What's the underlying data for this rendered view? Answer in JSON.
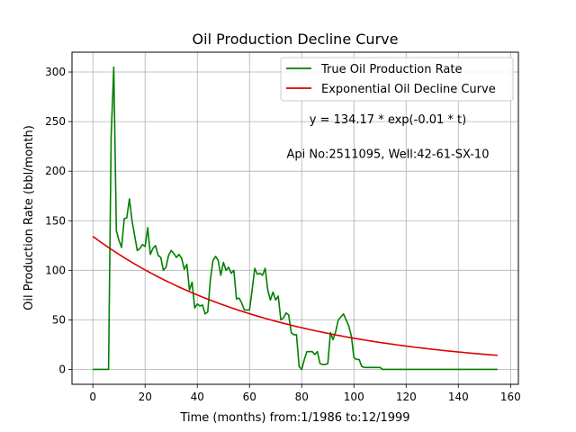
{
  "chart_data": {
    "type": "line",
    "title": "Oil Production Decline Curve",
    "xlabel": "Time (months) from:1/1986 to:12/1999",
    "ylabel": "Oil Production Rate (bbl/month)",
    "xlim": [
      -8,
      163
    ],
    "ylim": [
      -15,
      320
    ],
    "xticks": [
      0,
      20,
      40,
      60,
      80,
      100,
      120,
      140,
      160
    ],
    "yticks": [
      0,
      50,
      100,
      150,
      200,
      250,
      300
    ],
    "grid": true,
    "legend_position": "top-right",
    "annotations": [
      {
        "text": "y = 134.17 * exp(-0.01 * t)",
        "x": 113,
        "y": 252
      },
      {
        "text": "Api No:2511095, Well:42-61-SX-10",
        "x": 113,
        "y": 217
      }
    ],
    "series": [
      {
        "name": "True Oil Production Rate",
        "color": "#008000",
        "points": [
          [
            0,
            0
          ],
          [
            1,
            0
          ],
          [
            2,
            0
          ],
          [
            3,
            0
          ],
          [
            4,
            0
          ],
          [
            5,
            0
          ],
          [
            6,
            0
          ],
          [
            7,
            235
          ],
          [
            8,
            305
          ],
          [
            9,
            140
          ],
          [
            10,
            130
          ],
          [
            11,
            123
          ],
          [
            12,
            152
          ],
          [
            13,
            153
          ],
          [
            14,
            172
          ],
          [
            15,
            150
          ],
          [
            16,
            135
          ],
          [
            17,
            120
          ],
          [
            18,
            122
          ],
          [
            19,
            126
          ],
          [
            20,
            124
          ],
          [
            21,
            143
          ],
          [
            22,
            116
          ],
          [
            23,
            122
          ],
          [
            24,
            125
          ],
          [
            25,
            115
          ],
          [
            26,
            113
          ],
          [
            27,
            100
          ],
          [
            28,
            103
          ],
          [
            29,
            115
          ],
          [
            30,
            120
          ],
          [
            31,
            117
          ],
          [
            32,
            113
          ],
          [
            33,
            116
          ],
          [
            34,
            112
          ],
          [
            35,
            101
          ],
          [
            36,
            106
          ],
          [
            37,
            80
          ],
          [
            38,
            88
          ],
          [
            39,
            62
          ],
          [
            40,
            66
          ],
          [
            41,
            64
          ],
          [
            42,
            65
          ],
          [
            43,
            56
          ],
          [
            44,
            58
          ],
          [
            45,
            90
          ],
          [
            46,
            110
          ],
          [
            47,
            114
          ],
          [
            48,
            110
          ],
          [
            49,
            95
          ],
          [
            50,
            108
          ],
          [
            51,
            100
          ],
          [
            52,
            103
          ],
          [
            53,
            97
          ],
          [
            54,
            100
          ],
          [
            55,
            71
          ],
          [
            56,
            72
          ],
          [
            57,
            67
          ],
          [
            58,
            60
          ],
          [
            59,
            60
          ],
          [
            60,
            60
          ],
          [
            61,
            80
          ],
          [
            62,
            102
          ],
          [
            63,
            96
          ],
          [
            64,
            97
          ],
          [
            65,
            95
          ],
          [
            66,
            102
          ],
          [
            67,
            80
          ],
          [
            68,
            70
          ],
          [
            69,
            78
          ],
          [
            70,
            70
          ],
          [
            71,
            74
          ],
          [
            72,
            50
          ],
          [
            73,
            52
          ],
          [
            74,
            57
          ],
          [
            75,
            55
          ],
          [
            76,
            37
          ],
          [
            77,
            35
          ],
          [
            78,
            35
          ],
          [
            79,
            3
          ],
          [
            80,
            0
          ],
          [
            81,
            10
          ],
          [
            82,
            18
          ],
          [
            83,
            18
          ],
          [
            84,
            18
          ],
          [
            85,
            15
          ],
          [
            86,
            18
          ],
          [
            87,
            6
          ],
          [
            88,
            5
          ],
          [
            89,
            5
          ],
          [
            90,
            6
          ],
          [
            91,
            37
          ],
          [
            92,
            30
          ],
          [
            93,
            38
          ],
          [
            94,
            50
          ],
          [
            95,
            53
          ],
          [
            96,
            56
          ],
          [
            97,
            50
          ],
          [
            98,
            44
          ],
          [
            99,
            34
          ],
          [
            100,
            12
          ],
          [
            101,
            10
          ],
          [
            102,
            10
          ],
          [
            103,
            3
          ],
          [
            104,
            2
          ],
          [
            105,
            2
          ],
          [
            106,
            2
          ],
          [
            107,
            2
          ],
          [
            108,
            2
          ],
          [
            109,
            2
          ],
          [
            110,
            2
          ],
          [
            111,
            0
          ],
          [
            115,
            0
          ],
          [
            120,
            0
          ],
          [
            125,
            0
          ],
          [
            130,
            0
          ],
          [
            135,
            0
          ],
          [
            140,
            0
          ],
          [
            145,
            0
          ],
          [
            150,
            0
          ],
          [
            155,
            0
          ]
        ]
      },
      {
        "name": "Exponential Oil Decline Curve",
        "color": "#dd0000",
        "model": {
          "a": 134.17,
          "b": 0.0145,
          "t_start": 0,
          "t_end": 155
        }
      }
    ]
  }
}
